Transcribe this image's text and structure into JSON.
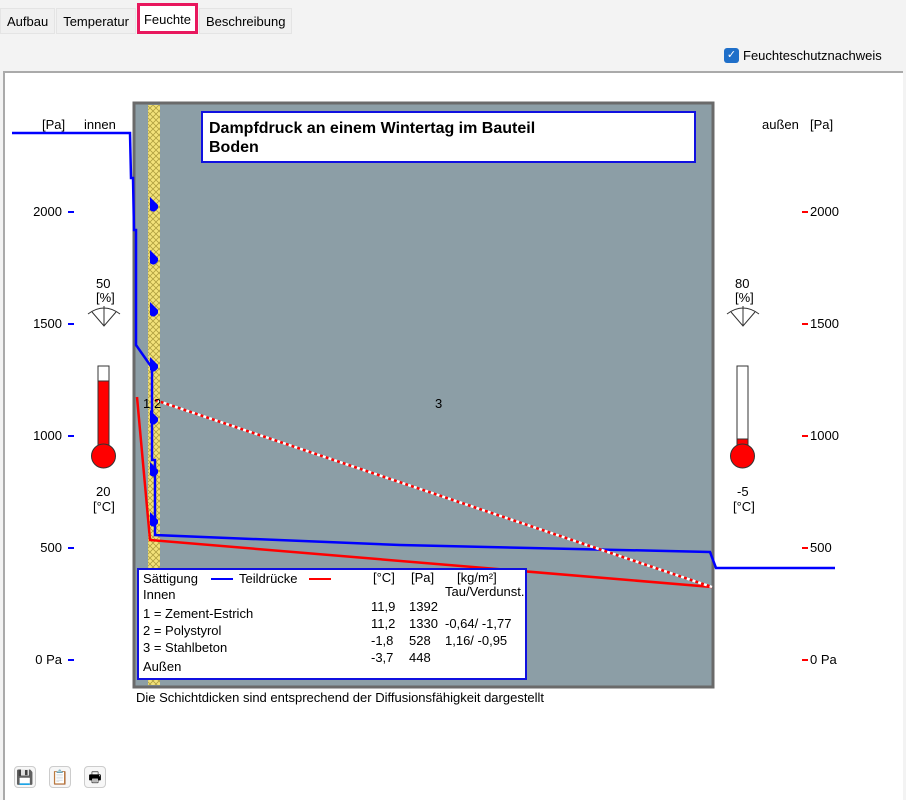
{
  "tabs": [
    {
      "label": "Aufbau"
    },
    {
      "label": "Temperatur"
    },
    {
      "label": "Feuchte",
      "active": true
    },
    {
      "label": "Beschreibung"
    }
  ],
  "checkbox": {
    "label": "Feuchteschutznachweis",
    "checked": true
  },
  "chart": {
    "title_line1": "Dampfdruck an einem Wintertag im Bauteil",
    "title_line2": "Boden",
    "left_unit": "[Pa]",
    "left_side": "innen",
    "right_unit": "[Pa]",
    "right_side": "außen",
    "inner": {
      "humidity": "50",
      "humidity_unit": "[%]",
      "temperature": "20",
      "temperature_unit": "[°C]"
    },
    "outer": {
      "humidity": "80",
      "humidity_unit": "[%]",
      "temperature": "-5",
      "temperature_unit": "[°C]"
    },
    "layer_labels": [
      "1",
      "2",
      "3"
    ],
    "footnote": "Die Schichtdicken sind entsprechend der Diffusionsfähigkeit dargestellt"
  },
  "chart_data": {
    "type": "line",
    "y_ticks_left": [
      "2000",
      "1500",
      "1000",
      "500",
      "0 Pa"
    ],
    "y_ticks_right": [
      "2000",
      "1500",
      "1000",
      "500",
      "0 Pa"
    ],
    "ylim": [
      0,
      2000
    ],
    "series": [
      {
        "name": "Sättigung",
        "color": "#0000ff"
      },
      {
        "name": "Teildrücke",
        "color": "#ff0000"
      }
    ]
  },
  "legend": {
    "saturation": "Sättigung",
    "partial": "Teildrücke",
    "h_temp": "[°C]",
    "h_pa": "[Pa]",
    "h_kg": "[kg/m²]",
    "h_tau": "Tau/Verdunst.",
    "inner": "Innen",
    "outer": "Außen",
    "layers": [
      "1 = Zement-Estrich",
      "2 = Polystyrol",
      "3 = Stahlbeton"
    ],
    "rows": [
      {
        "t": "11,9",
        "p": "1392",
        "k": ""
      },
      {
        "t": "11,2",
        "p": "1330",
        "k": "-0,64/ -1,77"
      },
      {
        "t": "-1,8",
        "p": "528",
        "k": "1,16/ -0,95"
      },
      {
        "t": "-3,7",
        "p": "448",
        "k": ""
      }
    ]
  },
  "toolbar": [
    {
      "icon": "save-icon"
    },
    {
      "icon": "clipboard-icon"
    },
    {
      "icon": "print-icon"
    }
  ]
}
